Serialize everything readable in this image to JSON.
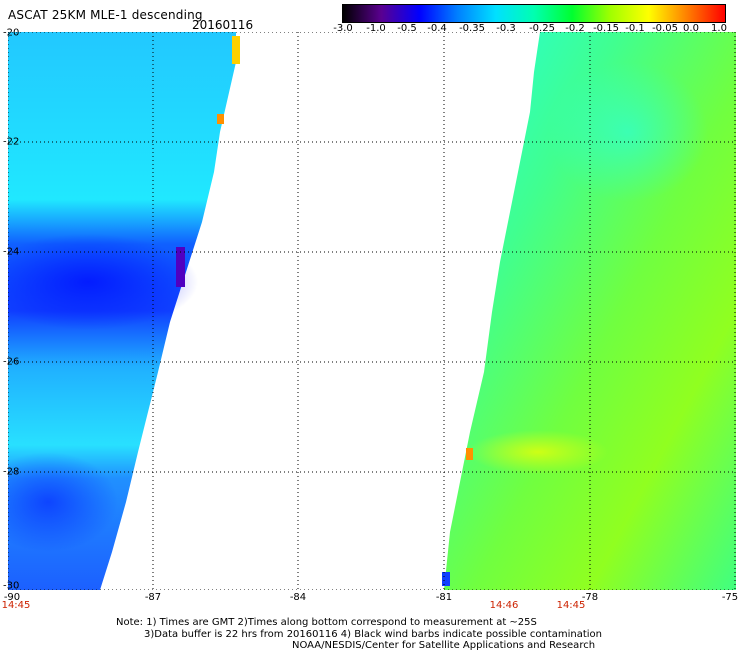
{
  "header": {
    "title": "ASCAT 25KM MLE-1 descending",
    "date": "20160116"
  },
  "colorbar": {
    "labels": [
      "-3.0",
      "-1.0",
      "-0.5",
      "-0.4",
      "-0.35",
      "-0.3",
      "-0.25",
      "-0.2",
      "-0.15",
      "-0.1",
      "-0.05",
      "0.0",
      "1.0"
    ]
  },
  "axes": {
    "y_labels": [
      "-20",
      "-22",
      "-24",
      "-26",
      "-28",
      "-30"
    ],
    "x_labels": [
      "-90",
      "-87",
      "-84",
      "-81",
      "-78",
      "-75"
    ]
  },
  "times": {
    "left": "14:45",
    "mid": "14:46",
    "right": "14:45"
  },
  "notes": {
    "line1": "Note: 1) Times are GMT 2)Times along bottom correspond to measurement at ~25S",
    "line2": "3)Data buffer is 22 hrs from 20160116 4) Black wind barbs indicate possible contamination",
    "line3": "NOAA/NESDIS/Center for Satellite Applications and Research"
  },
  "colors": {
    "colorbar_stops": [
      "#000000",
      "#5a0090",
      "#0000ff",
      "#0080ff",
      "#00e0ff",
      "#00ffb0",
      "#00ff30",
      "#a0ff00",
      "#ffff00",
      "#ff8000",
      "#ff0000"
    ]
  }
}
